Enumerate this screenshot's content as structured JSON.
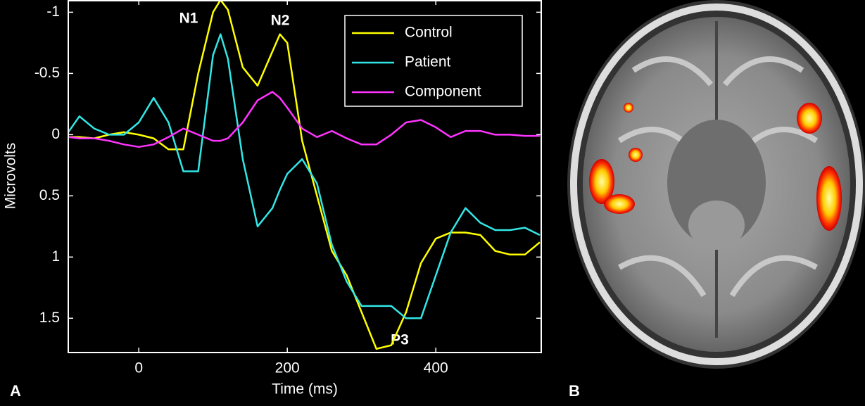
{
  "chart_data": {
    "type": "line",
    "x_label": "Time (ms)",
    "y_label": "Microvolts",
    "x": [
      -95,
      -80,
      -60,
      -40,
      -20,
      0,
      20,
      40,
      60,
      80,
      100,
      110,
      120,
      140,
      160,
      180,
      190,
      200,
      220,
      240,
      260,
      280,
      300,
      320,
      340,
      360,
      380,
      400,
      420,
      440,
      460,
      480,
      500,
      520,
      540
    ],
    "series": [
      {
        "name": "Control",
        "color": "#ffff00",
        "values": [
          0.02,
          0.02,
          0.03,
          0.0,
          -0.02,
          0.0,
          0.03,
          0.12,
          0.12,
          -0.5,
          -1.0,
          -1.1,
          -1.02,
          -0.55,
          -0.4,
          -0.68,
          -0.82,
          -0.75,
          0.05,
          0.5,
          0.95,
          1.15,
          1.45,
          1.75,
          1.72,
          1.45,
          1.05,
          0.85,
          0.8,
          0.8,
          0.82,
          0.95,
          0.98,
          0.98,
          0.88
        ]
      },
      {
        "name": "Patient",
        "color": "#33e6e6",
        "values": [
          -0.02,
          -0.15,
          -0.05,
          0.0,
          0.0,
          -0.1,
          -0.3,
          -0.1,
          0.3,
          0.3,
          -0.65,
          -0.82,
          -0.62,
          0.2,
          0.75,
          0.6,
          0.45,
          0.32,
          0.2,
          0.4,
          0.9,
          1.2,
          1.4,
          1.4,
          1.4,
          1.5,
          1.5,
          1.15,
          0.8,
          0.6,
          0.72,
          0.78,
          0.78,
          0.76,
          0.82
        ]
      },
      {
        "name": "Component",
        "color": "#ff33ff",
        "values": [
          0.02,
          0.03,
          0.03,
          0.05,
          0.08,
          0.1,
          0.08,
          0.02,
          -0.05,
          0.0,
          0.05,
          0.05,
          0.03,
          -0.1,
          -0.28,
          -0.35,
          -0.3,
          -0.22,
          -0.05,
          0.02,
          -0.03,
          0.03,
          0.08,
          0.08,
          0.0,
          -0.1,
          -0.12,
          -0.06,
          0.02,
          -0.03,
          -0.03,
          0.0,
          0.0,
          0.01,
          0.01
        ]
      }
    ],
    "xlim": [
      -95,
      542
    ],
    "xticks": [
      0,
      200,
      400
    ],
    "ylim": [
      -1.1,
      1.78
    ],
    "yticks": [
      -1,
      -0.5,
      0,
      0.5,
      1,
      1.5
    ],
    "y_inverted": true,
    "legend": "upper right",
    "annotations": [
      "N1",
      "N2",
      "P3"
    ]
  },
  "panel_labels": [
    "A",
    "B"
  ]
}
